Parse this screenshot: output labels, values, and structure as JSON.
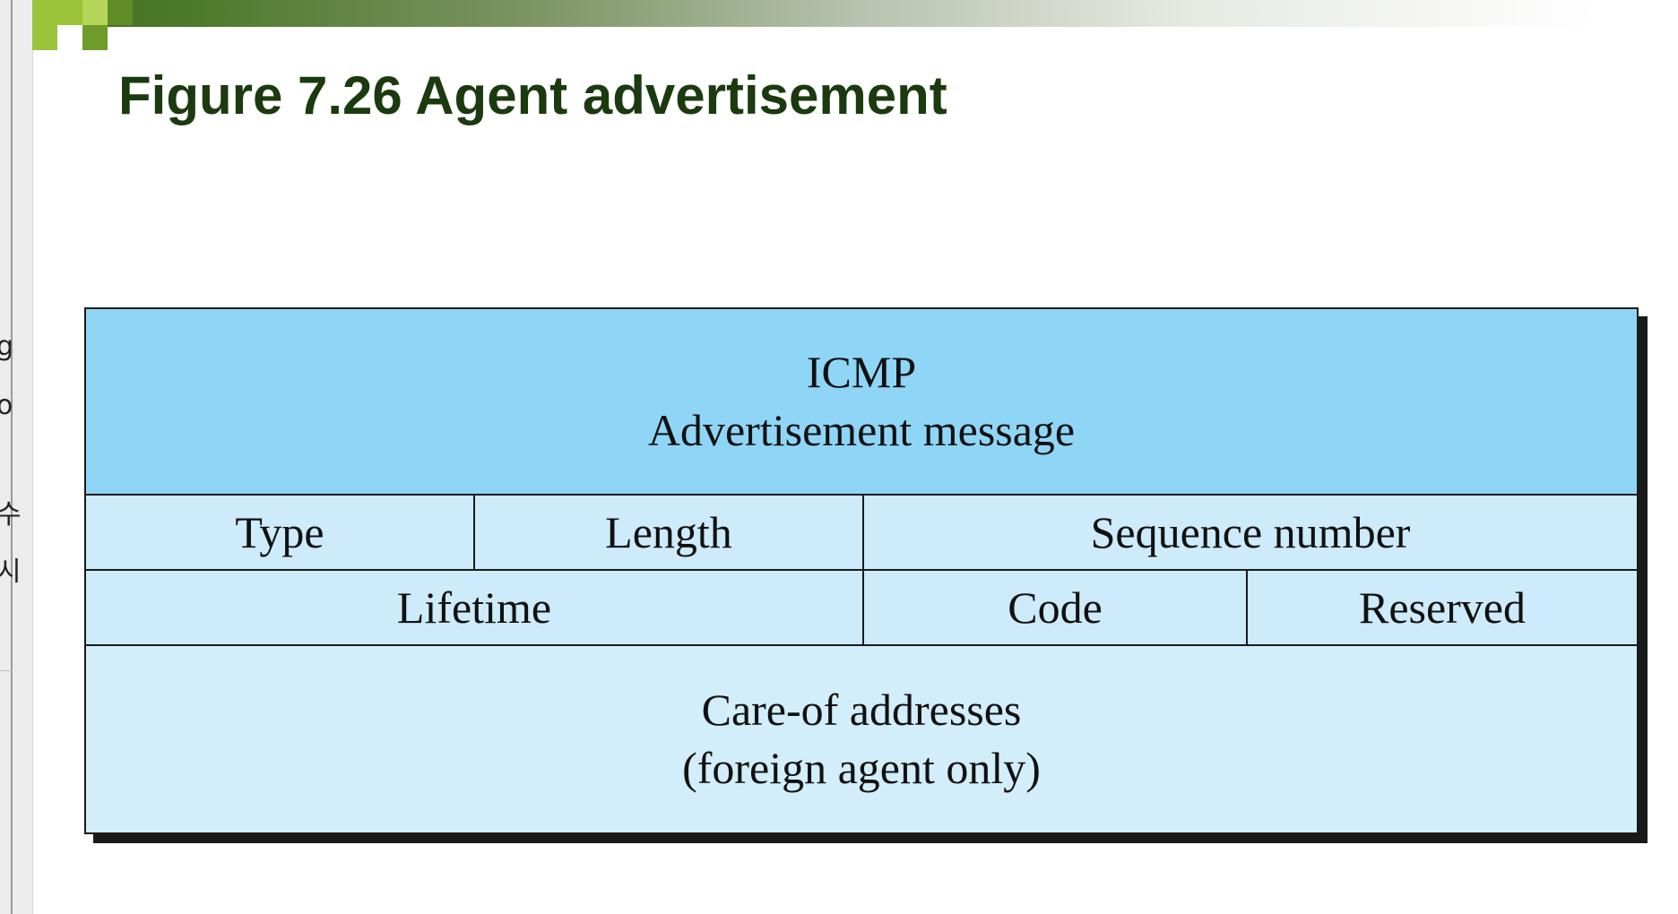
{
  "slide": {
    "title": "Figure 7.26 Agent advertisement"
  },
  "left_chrome_fragments": [
    "g",
    "o",
    "수",
    "시"
  ],
  "diagram": {
    "header": {
      "line1": "ICMP",
      "line2": "Advertisement message"
    },
    "row1": {
      "type": "Type",
      "length": "Length",
      "sequence": "Sequence number"
    },
    "row2": {
      "lifetime": "Lifetime",
      "code": "Code",
      "reserved": "Reserved"
    },
    "footer": {
      "line1": "Care-of addresses",
      "line2": "(foreign agent only)"
    }
  },
  "colors": {
    "title": "#1b3a0f",
    "header_fill": "#8fd6f6",
    "field_fill": "#cdebfa",
    "accent_green": "#9cc43a"
  }
}
